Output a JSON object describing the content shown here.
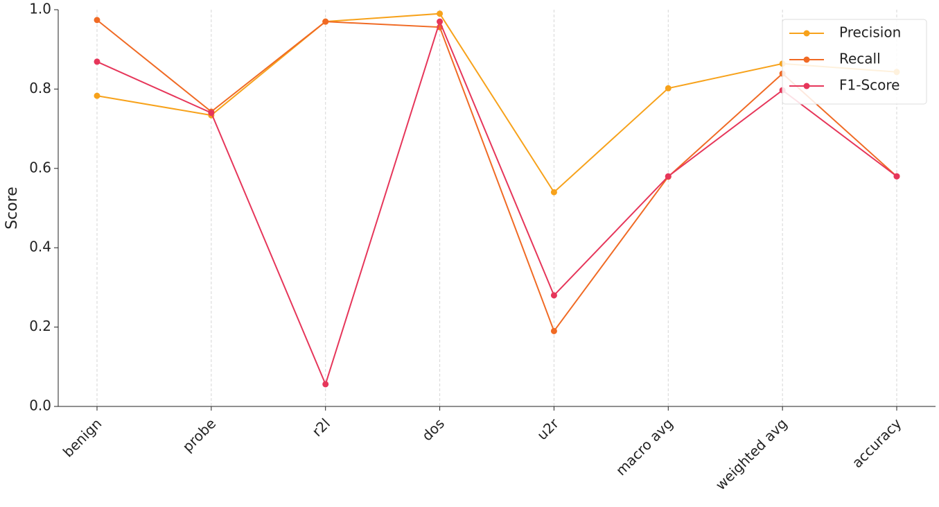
{
  "chart_data": {
    "type": "line",
    "y_label": "Score",
    "categories": [
      "benign",
      "probe",
      "r2l",
      "dos",
      "u2r",
      "macro avg",
      "weighted avg",
      "accuracy"
    ],
    "series": [
      {
        "name": "Precision",
        "color": "#f7a21b",
        "values": [
          0.783,
          0.734,
          0.97,
          0.99,
          0.54,
          0.802,
          0.864,
          0.843
        ]
      },
      {
        "name": "Recall",
        "color": "#f06a24",
        "values": [
          0.974,
          0.743,
          0.97,
          0.956,
          0.19,
          0.579,
          0.839,
          0.58
        ]
      },
      {
        "name": "F1-Score",
        "color": "#e6365a",
        "values": [
          0.869,
          0.74,
          0.056,
          0.97,
          0.28,
          0.58,
          0.797,
          0.58
        ]
      }
    ],
    "ylim": [
      0,
      1
    ],
    "yticks": [
      {
        "value": 0,
        "label": "0.0"
      },
      {
        "value": 0.2,
        "label": "0.2"
      },
      {
        "value": 0.4,
        "label": "0.4"
      },
      {
        "value": 0.6,
        "label": "0.6"
      },
      {
        "value": 0.8,
        "label": "0.8"
      },
      {
        "value": 1,
        "label": "1.0"
      }
    ],
    "grid": true,
    "legend": "upper right"
  }
}
